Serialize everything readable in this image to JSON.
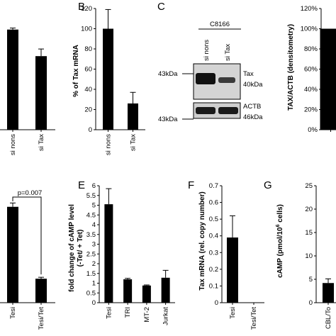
{
  "panels": {
    "A": {
      "letter": "",
      "chart_data": {
        "type": "bar",
        "title": "",
        "ylabel": "",
        "categories": [
          "si nons",
          "si Tax"
        ],
        "values": [
          98,
          72
        ],
        "errors": [
          1.5,
          7
        ],
        "ylim": [
          0,
          120
        ]
      }
    },
    "B": {
      "letter": "B",
      "chart_data": {
        "type": "bar",
        "title": "",
        "ylabel": "% of Tax mRNA",
        "categories": [
          "si nons",
          "si Tax"
        ],
        "values": [
          100,
          26
        ],
        "errors": [
          19,
          11
        ],
        "ylim": [
          0,
          120
        ],
        "yticks": [
          0,
          20,
          40,
          60,
          80,
          100,
          120
        ]
      }
    },
    "C": {
      "letter": "C",
      "blot": {
        "cell_line": "C8166",
        "lanes": [
          "si nons",
          "si Tax"
        ],
        "left_markers": [
          "43kDa",
          "43kDa"
        ],
        "bands": [
          {
            "name": "Tax",
            "size": "40kDa"
          },
          {
            "name": "ACTB",
            "size": "46kDa"
          }
        ]
      }
    },
    "D": {
      "letter": "",
      "chart_data": {
        "type": "bar",
        "title": "",
        "ylabel": "TAX/ACTB (densitometry)",
        "categories": [
          ""
        ],
        "values": [
          100
        ],
        "ylim": [
          0,
          120
        ],
        "yticks": [
          "0%",
          "20%",
          "40%",
          "60%",
          "80%",
          "100%",
          "120%"
        ]
      }
    },
    "lowerLeft": {
      "letter": "",
      "chart_data": {
        "type": "bar",
        "title": "",
        "ylabel": "",
        "categories": [
          "Tesi",
          "Tesi/Tet"
        ],
        "values": [
          1.0,
          0.25
        ],
        "errors": [
          0.04,
          0.015
        ],
        "ylim": [
          0,
          1.22
        ],
        "annotation": "p=0.007"
      }
    },
    "E": {
      "letter": "E",
      "chart_data": {
        "type": "bar",
        "title": "",
        "ylabel": "fold change of cAMP level",
        "ylabel2": "(-Tet/ + Tet)",
        "categories": [
          "Tesi",
          "TRI",
          "MT-2",
          "Jurkat"
        ],
        "values": [
          5.05,
          1.2,
          0.88,
          1.28
        ],
        "errors": [
          0.8,
          0.05,
          0.03,
          0.38
        ],
        "ylim": [
          0,
          6
        ],
        "yticks": [
          0,
          0.5,
          1,
          1.5,
          2,
          2.5,
          3,
          3.5,
          4,
          4.5,
          5,
          5.5,
          6
        ]
      }
    },
    "F": {
      "letter": "F",
      "chart_data": {
        "type": "bar",
        "title": "",
        "ylabel": "Tax mRNA (rel. copy number)",
        "categories": [
          "Tesi",
          "Tesi/Tet"
        ],
        "values": [
          0.39,
          0
        ],
        "errors": [
          0.13,
          0
        ],
        "ylim": [
          0,
          0.7
        ],
        "yticks": [
          0,
          0.1,
          0.2,
          0.3,
          0.4,
          0.5,
          0.6,
          0.7
        ]
      }
    },
    "G": {
      "letter": "G",
      "chart_data": {
        "type": "bar",
        "title": "",
        "ylabel": "cAMP (pmol/10",
        "ylabel_sup": "6",
        "ylabel_end": " cells)",
        "categories": [
          "CBL/To"
        ],
        "values": [
          4.2
        ],
        "errors": [
          0.9
        ],
        "ylim": [
          0,
          25
        ],
        "yticks": [
          0,
          5,
          10,
          15,
          20,
          25
        ]
      }
    }
  },
  "colors": {
    "bar": "#000000",
    "axis": "#000000",
    "blot_bg": "#c9c9c9",
    "band": "#1a1a1a"
  }
}
